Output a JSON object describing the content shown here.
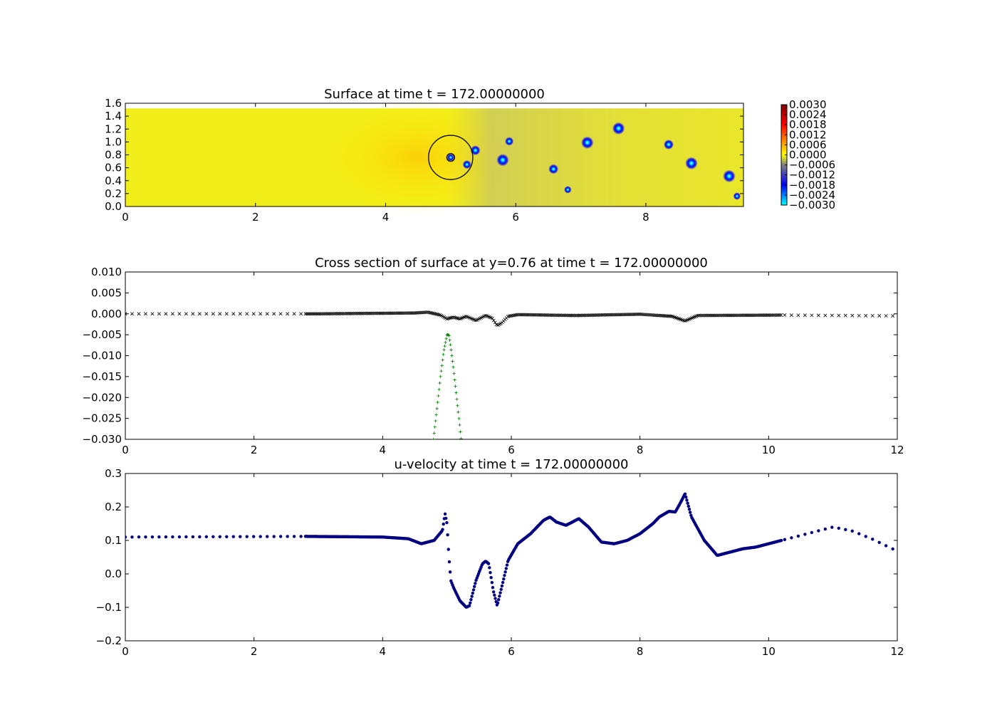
{
  "chart_data": [
    {
      "type": "heatmap",
      "title": "Surface at time t =   172.00000000",
      "xlim": [
        0,
        9.5
      ],
      "ylim": [
        0,
        1.6
      ],
      "xticks": [
        "0",
        "2",
        "4",
        "6",
        "8"
      ],
      "yticks": [
        "0.0",
        "0.2",
        "0.4",
        "0.6",
        "0.8",
        "1.0",
        "1.2",
        "1.4",
        "1.6"
      ],
      "colorbar": {
        "range": [
          -0.003,
          0.003
        ],
        "ticks": [
          "0.0030",
          "0.0024",
          "0.0018",
          "0.0012",
          "0.0006",
          "0.0000",
          "−0.0006",
          "−0.0012",
          "−0.0018",
          "−0.0024",
          "−0.0030"
        ],
        "colormap": [
          "#00ffff",
          "#0000ff",
          "#808080",
          "#ffff00",
          "#ff0000",
          "#800000"
        ]
      },
      "background_color": "#f2ee1a",
      "obstacle": {
        "cx": 5.0,
        "cy": 0.76,
        "r": 0.34,
        "inner_r": 0.06
      },
      "vortices": [
        {
          "x": 5.25,
          "y": 0.65,
          "r": 0.07
        },
        {
          "x": 5.38,
          "y": 0.87,
          "r": 0.08
        },
        {
          "x": 5.8,
          "y": 0.72,
          "r": 0.1
        },
        {
          "x": 5.9,
          "y": 1.01,
          "r": 0.07
        },
        {
          "x": 6.58,
          "y": 0.58,
          "r": 0.08
        },
        {
          "x": 6.8,
          "y": 0.26,
          "r": 0.06
        },
        {
          "x": 7.1,
          "y": 0.99,
          "r": 0.1
        },
        {
          "x": 7.58,
          "y": 1.21,
          "r": 0.1
        },
        {
          "x": 8.35,
          "y": 0.96,
          "r": 0.08
        },
        {
          "x": 8.7,
          "y": 0.67,
          "r": 0.1
        },
        {
          "x": 9.28,
          "y": 0.47,
          "r": 0.1
        },
        {
          "x": 9.4,
          "y": 0.16,
          "r": 0.06
        }
      ]
    },
    {
      "type": "scatter",
      "title": "Cross section of surface at y=0.76 at time t =   172.00000000",
      "xlim": [
        0,
        12
      ],
      "ylim": [
        -0.03,
        0.01
      ],
      "xticks": [
        "0",
        "2",
        "4",
        "6",
        "8",
        "10",
        "12"
      ],
      "yticks": [
        "0.010",
        "0.005",
        "0.000",
        "−0.005",
        "−0.010",
        "−0.015",
        "−0.020",
        "−0.025",
        "−0.030"
      ],
      "series": [
        {
          "marker": "x",
          "color": "#000000",
          "x": [
            0,
            2.8,
            3.0,
            4.5,
            4.7,
            4.9,
            5.0,
            5.1,
            5.2,
            5.3,
            5.45,
            5.6,
            5.7,
            5.78,
            5.85,
            5.95,
            6.1,
            7.0,
            8.0,
            8.5,
            8.7,
            8.9,
            10.2,
            12
          ],
          "y": [
            0.0,
            0.0,
            0.0,
            0.0002,
            0.0004,
            -0.0003,
            -0.0012,
            -0.0008,
            -0.0012,
            -0.0006,
            -0.0016,
            -0.0004,
            -0.001,
            -0.0028,
            -0.0022,
            -0.0006,
            -0.0002,
            -0.0004,
            -0.0001,
            -0.0006,
            -0.0017,
            -0.0004,
            -0.0003,
            -0.0005
          ]
        },
        {
          "marker": "+",
          "color": "#008000",
          "x": [
            4.79,
            4.85,
            4.9,
            4.95,
            5.0,
            5.03,
            5.06,
            5.1,
            5.15,
            5.2,
            5.22
          ],
          "y": [
            -0.03,
            -0.022,
            -0.015,
            -0.009,
            -0.005,
            -0.005,
            -0.008,
            -0.013,
            -0.02,
            -0.027,
            -0.03
          ]
        }
      ]
    },
    {
      "type": "scatter",
      "title": "u-velocity at time t =   172.00000000",
      "xlim": [
        0,
        12
      ],
      "ylim": [
        -0.2,
        0.3
      ],
      "xticks": [
        "0",
        "2",
        "4",
        "6",
        "8",
        "10",
        "12"
      ],
      "yticks": [
        "0.3",
        "0.2",
        "0.1",
        "0.0",
        "−0.1",
        "−0.2"
      ],
      "series": [
        {
          "marker": "o",
          "color": "#000080",
          "x": [
            0,
            2.8,
            4.0,
            4.4,
            4.6,
            4.8,
            4.93,
            4.97,
            5.0,
            5.03,
            5.06,
            5.1,
            5.2,
            5.3,
            5.35,
            5.45,
            5.55,
            5.6,
            5.65,
            5.72,
            5.78,
            5.85,
            5.95,
            6.1,
            6.3,
            6.5,
            6.6,
            6.7,
            6.85,
            7.05,
            7.2,
            7.4,
            7.6,
            7.8,
            8.0,
            8.2,
            8.3,
            8.45,
            8.55,
            8.65,
            8.7,
            8.8,
            9.0,
            9.2,
            9.4,
            9.6,
            9.8,
            10.0,
            10.2,
            10.5,
            11.0,
            11.3,
            11.6,
            12.0
          ],
          "y": [
            0.11,
            0.112,
            0.11,
            0.105,
            0.09,
            0.1,
            0.13,
            0.18,
            0.15,
            0.05,
            -0.02,
            -0.04,
            -0.08,
            -0.1,
            -0.095,
            -0.02,
            0.03,
            0.038,
            0.03,
            -0.05,
            -0.095,
            -0.04,
            0.04,
            0.09,
            0.12,
            0.16,
            0.17,
            0.155,
            0.145,
            0.165,
            0.14,
            0.095,
            0.09,
            0.1,
            0.12,
            0.15,
            0.17,
            0.187,
            0.185,
            0.22,
            0.24,
            0.17,
            0.1,
            0.055,
            0.065,
            0.075,
            0.08,
            0.09,
            0.1,
            0.115,
            0.14,
            0.128,
            0.105,
            0.068
          ]
        }
      ]
    }
  ]
}
